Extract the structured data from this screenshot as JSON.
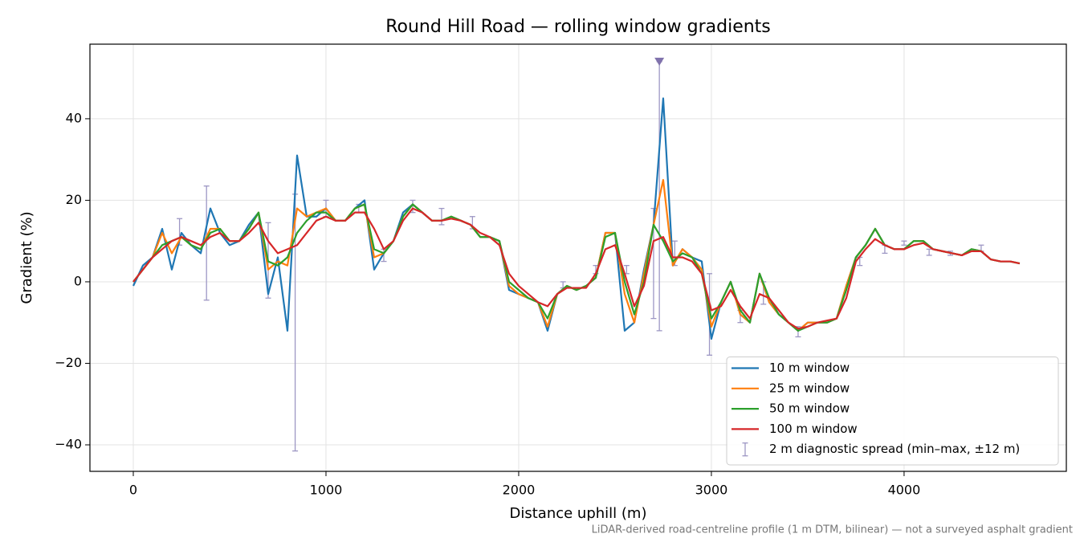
{
  "chart_data": {
    "type": "line",
    "title": "Round Hill Road — rolling window gradients",
    "xlabel": "Distance uphill (m)",
    "ylabel": "Gradient (%)",
    "footnote": "LiDAR-derived road-centreline profile (1 m DTM, bilinear) — not a surveyed asphalt gradient",
    "xlim": [
      -225,
      4842
    ],
    "ylim": [
      -46.5,
      58.3
    ],
    "xticks": [
      0,
      1000,
      2000,
      3000,
      4000
    ],
    "yticks": [
      {
        "value": -40,
        "label": "−40"
      },
      {
        "value": -20,
        "label": "−20"
      },
      0,
      20,
      40
    ],
    "grid": true,
    "legend": "lower right",
    "x": [
      0,
      50,
      100,
      150,
      200,
      250,
      300,
      350,
      400,
      450,
      500,
      550,
      600,
      650,
      700,
      750,
      800,
      850,
      900,
      950,
      1000,
      1050,
      1100,
      1150,
      1200,
      1250,
      1300,
      1350,
      1400,
      1450,
      1500,
      1550,
      1600,
      1650,
      1700,
      1750,
      1800,
      1850,
      1900,
      1950,
      2000,
      2050,
      2100,
      2150,
      2200,
      2250,
      2300,
      2350,
      2400,
      2450,
      2500,
      2550,
      2600,
      2650,
      2700,
      2750,
      2800,
      2850,
      2900,
      2950,
      3000,
      3050,
      3100,
      3150,
      3200,
      3250,
      3300,
      3350,
      3400,
      3450,
      3500,
      3550,
      3600,
      3650,
      3700,
      3750,
      3800,
      3850,
      3900,
      3950,
      4000,
      4050,
      4100,
      4150,
      4200,
      4250,
      4300,
      4350,
      4400,
      4450,
      4500,
      4550,
      4600
    ],
    "series": [
      {
        "name": "10 m window",
        "color": "#1f77b4",
        "values": [
          -1,
          4,
          6,
          13,
          3,
          12,
          9,
          7,
          18,
          12,
          9,
          10,
          14,
          17,
          -3,
          6,
          -12,
          31,
          16,
          16,
          18,
          15,
          15,
          18,
          20,
          3,
          7,
          10,
          17,
          19,
          17,
          15,
          15,
          16,
          15,
          14,
          11,
          11,
          10,
          -2,
          -3,
          -4,
          -5,
          -12,
          -3,
          -1,
          -2,
          -1,
          1,
          12,
          12,
          -12,
          -10,
          3,
          14,
          45,
          4,
          8,
          6,
          5,
          -14,
          -5,
          0,
          -8,
          -10,
          2,
          -5,
          -8,
          -10,
          -12,
          -10,
          -10,
          -10,
          -9,
          -1,
          6,
          9,
          13,
          9,
          8,
          8,
          10,
          10,
          8,
          7.5,
          7,
          6.5,
          8,
          7.5,
          5.5,
          5,
          5,
          4.5
        ]
      },
      {
        "name": "25 m window",
        "color": "#ff7f0e",
        "values": [
          0,
          3,
          6,
          12,
          7,
          11,
          9,
          8,
          13,
          13,
          10,
          10,
          13,
          17,
          3,
          5,
          4,
          18,
          16,
          17,
          18,
          15,
          15,
          18,
          19,
          6,
          7,
          10,
          16,
          19,
          17,
          15,
          15,
          16,
          15,
          14,
          11,
          11,
          10,
          -1,
          -3,
          -4,
          -5,
          -11,
          -3,
          -1,
          -2,
          -1,
          1,
          12,
          12,
          -3,
          -10,
          2,
          14,
          25,
          4,
          8,
          6,
          3,
          -11,
          -5,
          0,
          -8,
          -10,
          2,
          -5,
          -8,
          -10,
          -12,
          -10,
          -10,
          -10,
          -9,
          -1,
          6,
          9,
          13,
          9,
          8,
          8,
          10,
          10,
          8,
          7.5,
          7,
          6.5,
          8,
          7.5,
          5.5,
          5,
          5,
          4.5
        ]
      },
      {
        "name": "50 m window",
        "color": "#2ca02c",
        "values": [
          0,
          3,
          6,
          9,
          10,
          11,
          9,
          8,
          12,
          13,
          10,
          10,
          13,
          17,
          5,
          4,
          6,
          12,
          15,
          17,
          17,
          15,
          15,
          18,
          19,
          8,
          7,
          10,
          16,
          19,
          17,
          15,
          15,
          16,
          15,
          14,
          11,
          11,
          10,
          0,
          -2,
          -4,
          -5,
          -9,
          -3,
          -1,
          -2,
          -1,
          1,
          11,
          12,
          0,
          -8,
          0,
          14,
          10,
          5,
          7,
          6,
          2,
          -9,
          -5,
          0,
          -7,
          -10,
          2,
          -4,
          -8,
          -10,
          -12,
          -11,
          -10,
          -10,
          -9,
          -2,
          6,
          9,
          13,
          9,
          8,
          8,
          10,
          10,
          8,
          7.5,
          7,
          6.5,
          8,
          7.5,
          5.5,
          5,
          5,
          4.5
        ]
      },
      {
        "name": "100 m window",
        "color": "#d62728",
        "values": [
          0,
          3,
          6,
          8,
          10,
          11,
          10,
          9,
          11,
          12,
          10,
          10,
          12,
          14.5,
          10,
          7,
          8,
          9,
          12,
          15,
          16,
          15,
          15,
          17,
          17,
          13,
          8,
          10,
          15,
          18,
          17,
          15,
          15,
          15.5,
          15,
          14,
          12,
          11,
          9,
          2,
          -1,
          -3,
          -5,
          -6,
          -3,
          -1.5,
          -1.5,
          -1.5,
          2,
          8,
          9,
          2,
          -6,
          -1,
          10,
          11,
          6,
          6,
          5,
          2,
          -7,
          -6,
          -2,
          -6,
          -9,
          -3,
          -4,
          -7,
          -10,
          -11.5,
          -11,
          -10,
          -9.5,
          -9,
          -4,
          5,
          8,
          10.5,
          9,
          8,
          8,
          9,
          9.5,
          8,
          7.5,
          7,
          6.5,
          7.5,
          7.5,
          5.5,
          5,
          5,
          4.5
        ]
      }
    ],
    "error_bars": {
      "name": "2 m diagnostic spread (min–max, ±12 m)",
      "color": "#9d97c4",
      "x": [
        240,
        380,
        700,
        840,
        1000,
        1170,
        1300,
        1450,
        1600,
        1760,
        2230,
        2400,
        2560,
        2700,
        2730,
        2810,
        2990,
        3150,
        3270,
        3450,
        3770,
        3900,
        4000,
        4130,
        4240,
        4400
      ],
      "low": [
        9,
        -4.5,
        -4,
        -41.5,
        16,
        17,
        5,
        17,
        14,
        13,
        -1.5,
        2,
        2,
        -9,
        -12,
        4,
        -18,
        -10,
        -5.5,
        -13.5,
        4,
        7,
        9,
        6.5,
        6.5,
        7.5
      ],
      "high": [
        15.5,
        23.5,
        14.5,
        21.5,
        20,
        19,
        8,
        20,
        18,
        16,
        0,
        4,
        4,
        18,
        54,
        10,
        2,
        -7,
        0,
        -11,
        6,
        9,
        10,
        8,
        7.5,
        9
      ]
    },
    "peak_marker": {
      "x": 2730,
      "y": 54,
      "color": "#8072ac"
    }
  }
}
